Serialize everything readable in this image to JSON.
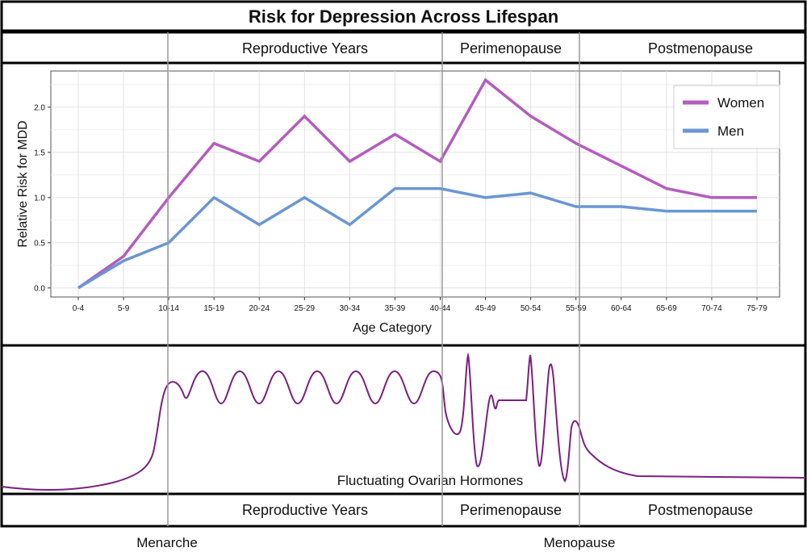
{
  "title": "Risk for Depression Across Lifespan",
  "phases": {
    "reproductive": "Reproductive Years",
    "perimenopause": "Perimenopause",
    "postmenopause": "Postmenopause"
  },
  "milestones": {
    "menarche": "Menarche",
    "menopause": "Menopause"
  },
  "hormone_label": "Fluctuating Ovarian Hormones",
  "colors": {
    "women": "#b45cbf",
    "men": "#6a96d4",
    "hormone": "#7b1f7f"
  },
  "chart_data": {
    "type": "line",
    "title": "Risk for Depression Across Lifespan",
    "xlabel": "Age Category",
    "ylabel": "Relative Risk for MDD",
    "ylim": [
      -0.1,
      2.4
    ],
    "yticks": [
      "0.0",
      "0.5",
      "1.0",
      "1.5",
      "2.0"
    ],
    "grid": true,
    "legend_position": "top-right",
    "categories": [
      "0-4",
      "5-9",
      "10-14",
      "15-19",
      "20-24",
      "25-29",
      "30-34",
      "35-39",
      "40-44",
      "45-49",
      "50-54",
      "55-59",
      "60-64",
      "65-69",
      "70-74",
      "75-79"
    ],
    "series": [
      {
        "name": "Women",
        "values": [
          0.0,
          0.35,
          1.0,
          1.6,
          1.4,
          1.9,
          1.4,
          1.7,
          1.4,
          2.3,
          1.9,
          1.6,
          1.35,
          1.1,
          1.0,
          1.0
        ]
      },
      {
        "name": "Men",
        "values": [
          0.0,
          0.3,
          0.5,
          1.0,
          0.7,
          1.0,
          0.7,
          1.1,
          1.1,
          1.0,
          1.05,
          0.9,
          0.9,
          0.85,
          0.85,
          0.85
        ]
      }
    ]
  }
}
